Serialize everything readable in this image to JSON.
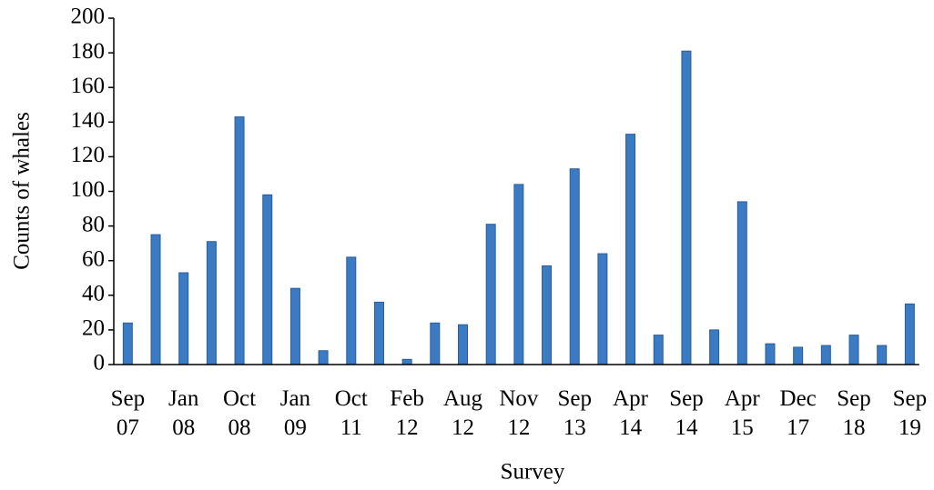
{
  "chart_data": {
    "type": "bar",
    "x_label": "Survey",
    "y_label": "Counts of whales",
    "categories": [
      "Sep 07",
      null,
      "Jan 08",
      null,
      "Oct 08",
      null,
      "Jan 09",
      null,
      "Oct 11",
      null,
      "Feb 12",
      null,
      "Aug 12",
      null,
      "Nov 12",
      null,
      "Sep 13",
      null,
      "Apr 14",
      null,
      "Sep 14",
      null,
      "Apr 15",
      null,
      "Dec 17",
      null,
      "Sep 18",
      null,
      "Sep 19"
    ],
    "values": [
      24,
      75,
      53,
      71,
      143,
      98,
      44,
      8,
      62,
      36,
      3,
      24,
      23,
      81,
      104,
      57,
      113,
      64,
      133,
      17,
      181,
      20,
      94,
      12,
      10,
      11,
      17,
      11,
      35
    ],
    "color": "#3b7bc4",
    "ylim": [
      0,
      200
    ],
    "yticks": [
      0,
      20,
      40,
      60,
      80,
      100,
      120,
      140,
      160,
      180,
      200
    ],
    "grid": false
  }
}
